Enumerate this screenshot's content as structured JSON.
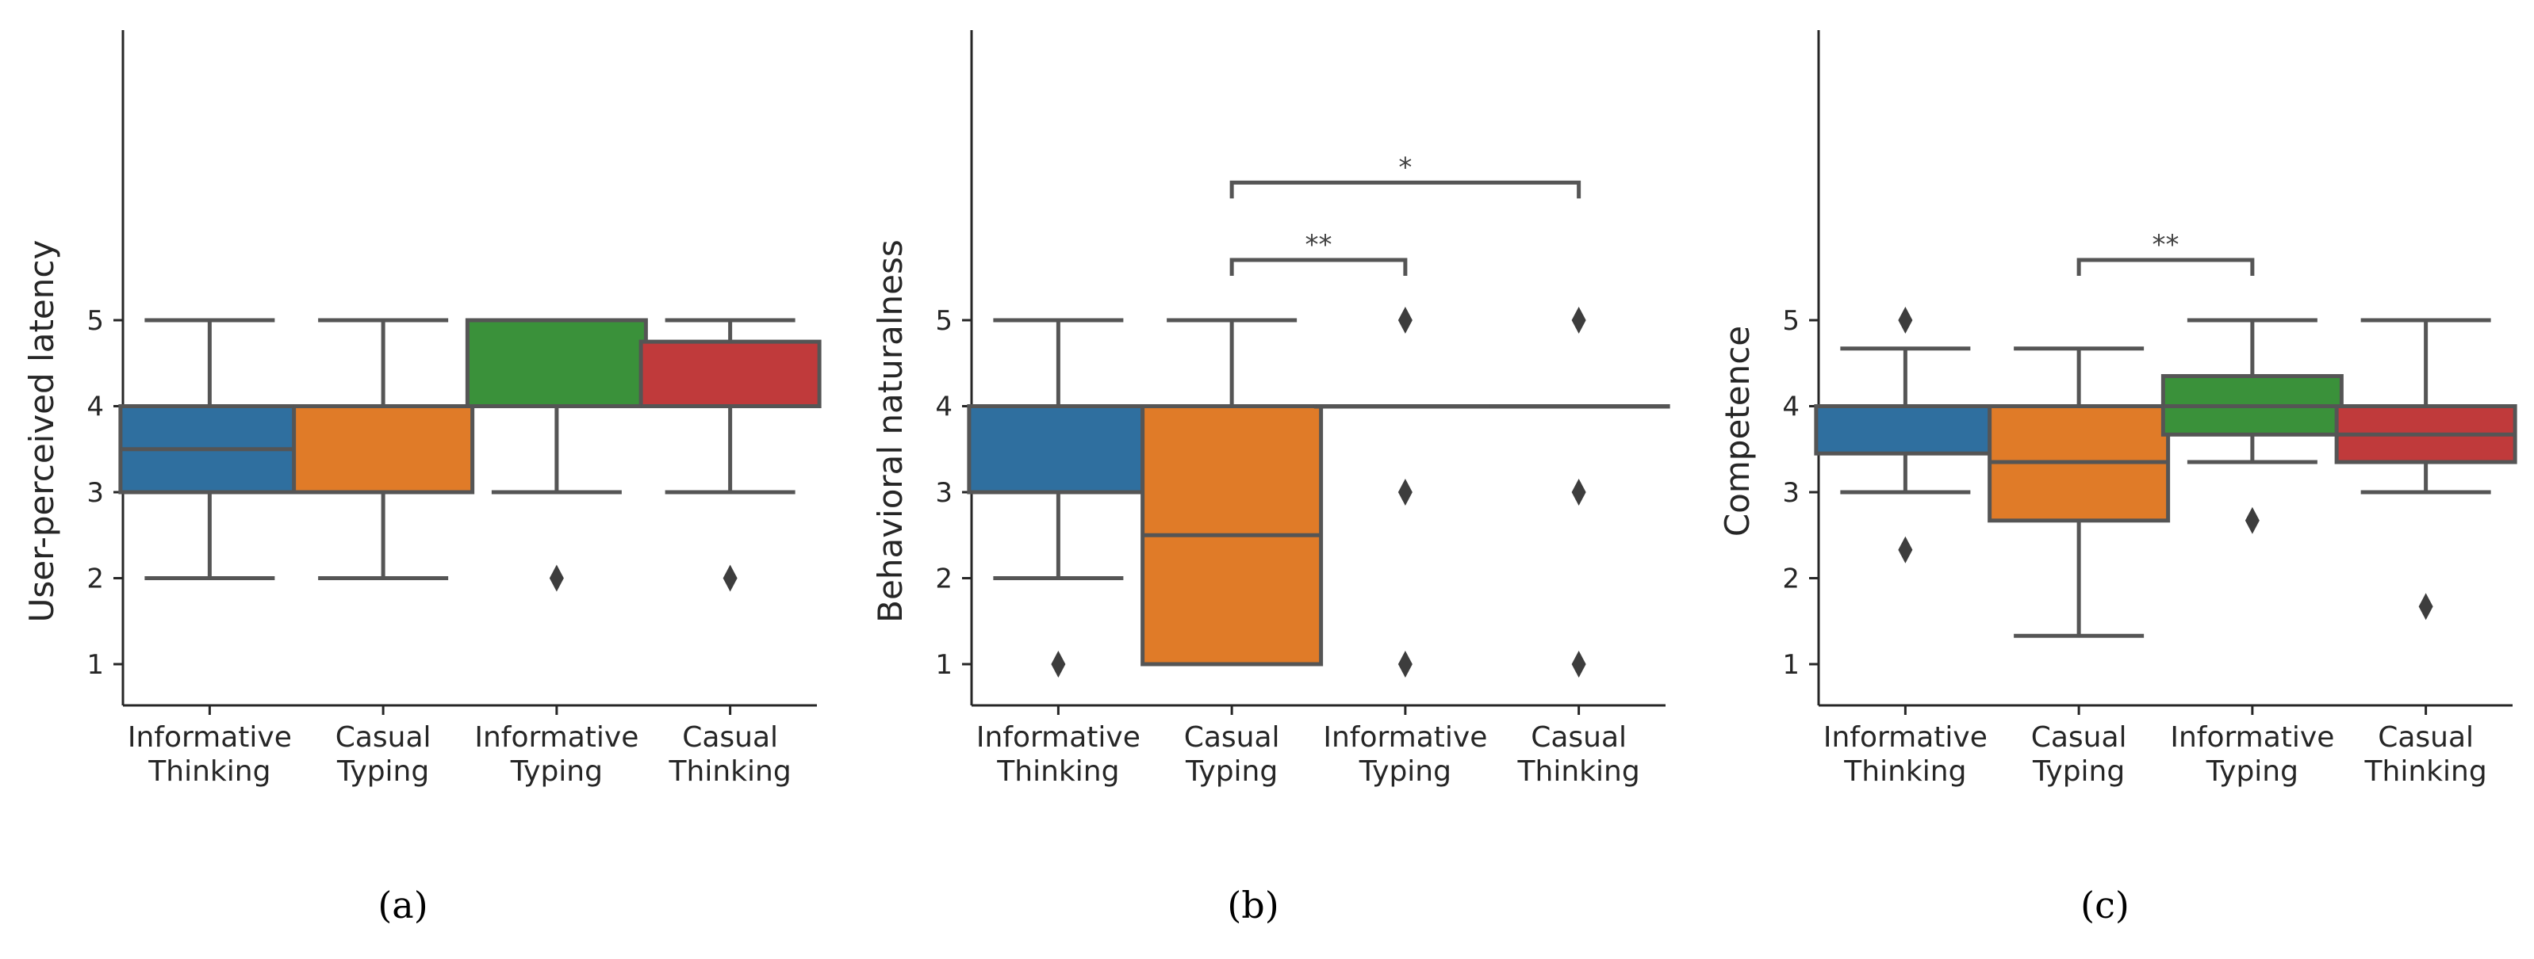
{
  "chart_data": [
    {
      "type": "boxplot",
      "panel_label": "(a)",
      "ylabel": "User-perceived latency",
      "yticks": [
        "1",
        "2",
        "3",
        "4",
        "5"
      ],
      "ylim": [
        0.5,
        8.5
      ],
      "categories": [
        {
          "line1": "Informative",
          "line2": "Thinking",
          "color": "#2f6f9f",
          "whislo": 2,
          "q1": 3,
          "median": 3.5,
          "q3": 4,
          "whishi": 5,
          "fliers": []
        },
        {
          "line1": "Casual",
          "line2": "Typing",
          "color": "#e07b28",
          "whislo": 2,
          "q1": 3,
          "median": 4,
          "q3": 4,
          "whishi": 5,
          "fliers": []
        },
        {
          "line1": "Informative",
          "line2": "Typing",
          "color": "#3a913a",
          "whislo": 3,
          "q1": 4,
          "median": 5,
          "q3": 5,
          "whishi": 5,
          "fliers": [
            2
          ]
        },
        {
          "line1": "Casual",
          "line2": "Thinking",
          "color": "#c03a3b",
          "whislo": 3,
          "q1": 4,
          "median": 4,
          "q3": 4.75,
          "whishi": 5,
          "fliers": [
            2
          ]
        }
      ],
      "significance": []
    },
    {
      "type": "boxplot",
      "panel_label": "(b)",
      "ylabel": "Behavioral naturalness",
      "yticks": [
        "1",
        "2",
        "3",
        "4",
        "5"
      ],
      "ylim": [
        0.5,
        8.5
      ],
      "categories": [
        {
          "line1": "Informative",
          "line2": "Thinking",
          "color": "#2f6f9f",
          "whislo": 2,
          "q1": 3,
          "median": 4,
          "q3": 4,
          "whishi": 5,
          "fliers": [
            1
          ]
        },
        {
          "line1": "Casual",
          "line2": "Typing",
          "color": "#e07b28",
          "whislo": 1,
          "q1": 1,
          "median": 2.5,
          "q3": 4,
          "whishi": 5,
          "fliers": []
        },
        {
          "line1": "Informative",
          "line2": "Typing",
          "color": "#3a913a",
          "whislo": 4,
          "q1": 4,
          "median": 4,
          "q3": 4,
          "whishi": 4,
          "fliers": [
            1,
            3,
            5
          ]
        },
        {
          "line1": "Casual",
          "line2": "Thinking",
          "color": "#c03a3b",
          "whislo": 4,
          "q1": 4,
          "median": 4,
          "q3": 4,
          "whishi": 4,
          "fliers": [
            1,
            3,
            5
          ]
        }
      ],
      "significance": [
        {
          "from": 1,
          "to": 2,
          "y": 5.7,
          "label": "**"
        },
        {
          "from": 1,
          "to": 3,
          "y": 6.6,
          "label": "*"
        }
      ]
    },
    {
      "type": "boxplot",
      "panel_label": "(c)",
      "ylabel": "Competence",
      "yticks": [
        "1",
        "2",
        "3",
        "4",
        "5"
      ],
      "ylim": [
        0.5,
        8.5
      ],
      "categories": [
        {
          "line1": "Informative",
          "line2": "Thinking",
          "color": "#2f6f9f",
          "whislo": 3,
          "q1": 3.45,
          "median": 4,
          "q3": 4,
          "whishi": 4.67,
          "fliers": [
            2.33,
            5
          ]
        },
        {
          "line1": "Casual",
          "line2": "Typing",
          "color": "#e07b28",
          "whislo": 1.33,
          "q1": 2.67,
          "median": 3.35,
          "q3": 4,
          "whishi": 4.67,
          "fliers": []
        },
        {
          "line1": "Informative",
          "line2": "Typing",
          "color": "#3a913a",
          "whislo": 3.35,
          "q1": 3.67,
          "median": 4,
          "q3": 4.35,
          "whishi": 5,
          "fliers": [
            2.67
          ]
        },
        {
          "line1": "Casual",
          "line2": "Thinking",
          "color": "#c03a3b",
          "whislo": 3,
          "q1": 3.35,
          "median": 3.67,
          "q3": 4,
          "whishi": 5,
          "fliers": [
            1.67
          ]
        }
      ],
      "significance": [
        {
          "from": 1,
          "to": 2,
          "y": 5.7,
          "label": "**"
        }
      ]
    }
  ]
}
